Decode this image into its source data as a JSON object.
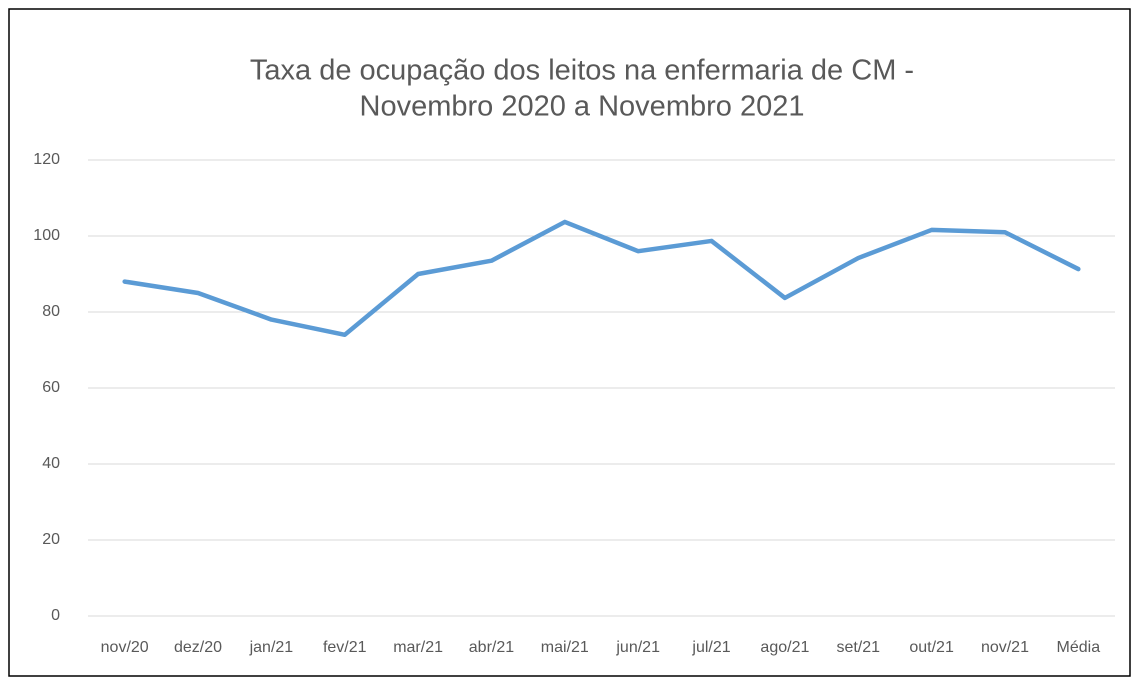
{
  "chart_data": {
    "type": "line",
    "title": [
      "Taxa de ocupação dos leitos na enfermaria de CM -",
      "Novembro 2020 a Novembro 2021"
    ],
    "categories": [
      "nov/20",
      "dez/20",
      "jan/21",
      "fev/21",
      "mar/21",
      "abr/21",
      "mai/21",
      "jun/21",
      "jul/21",
      "ago/21",
      "set/21",
      "out/21",
      "nov/21",
      "Média"
    ],
    "series": [
      {
        "color": "#5b9bd5",
        "values": [
          88,
          85,
          78,
          74,
          90,
          93.5,
          103.7,
          96,
          98.7,
          83.7,
          94.2,
          101.6,
          101,
          91.3
        ]
      }
    ],
    "ylim": [
      0,
      120
    ],
    "yticks": [
      0,
      20,
      40,
      60,
      80,
      100,
      120
    ],
    "grid": true
  }
}
